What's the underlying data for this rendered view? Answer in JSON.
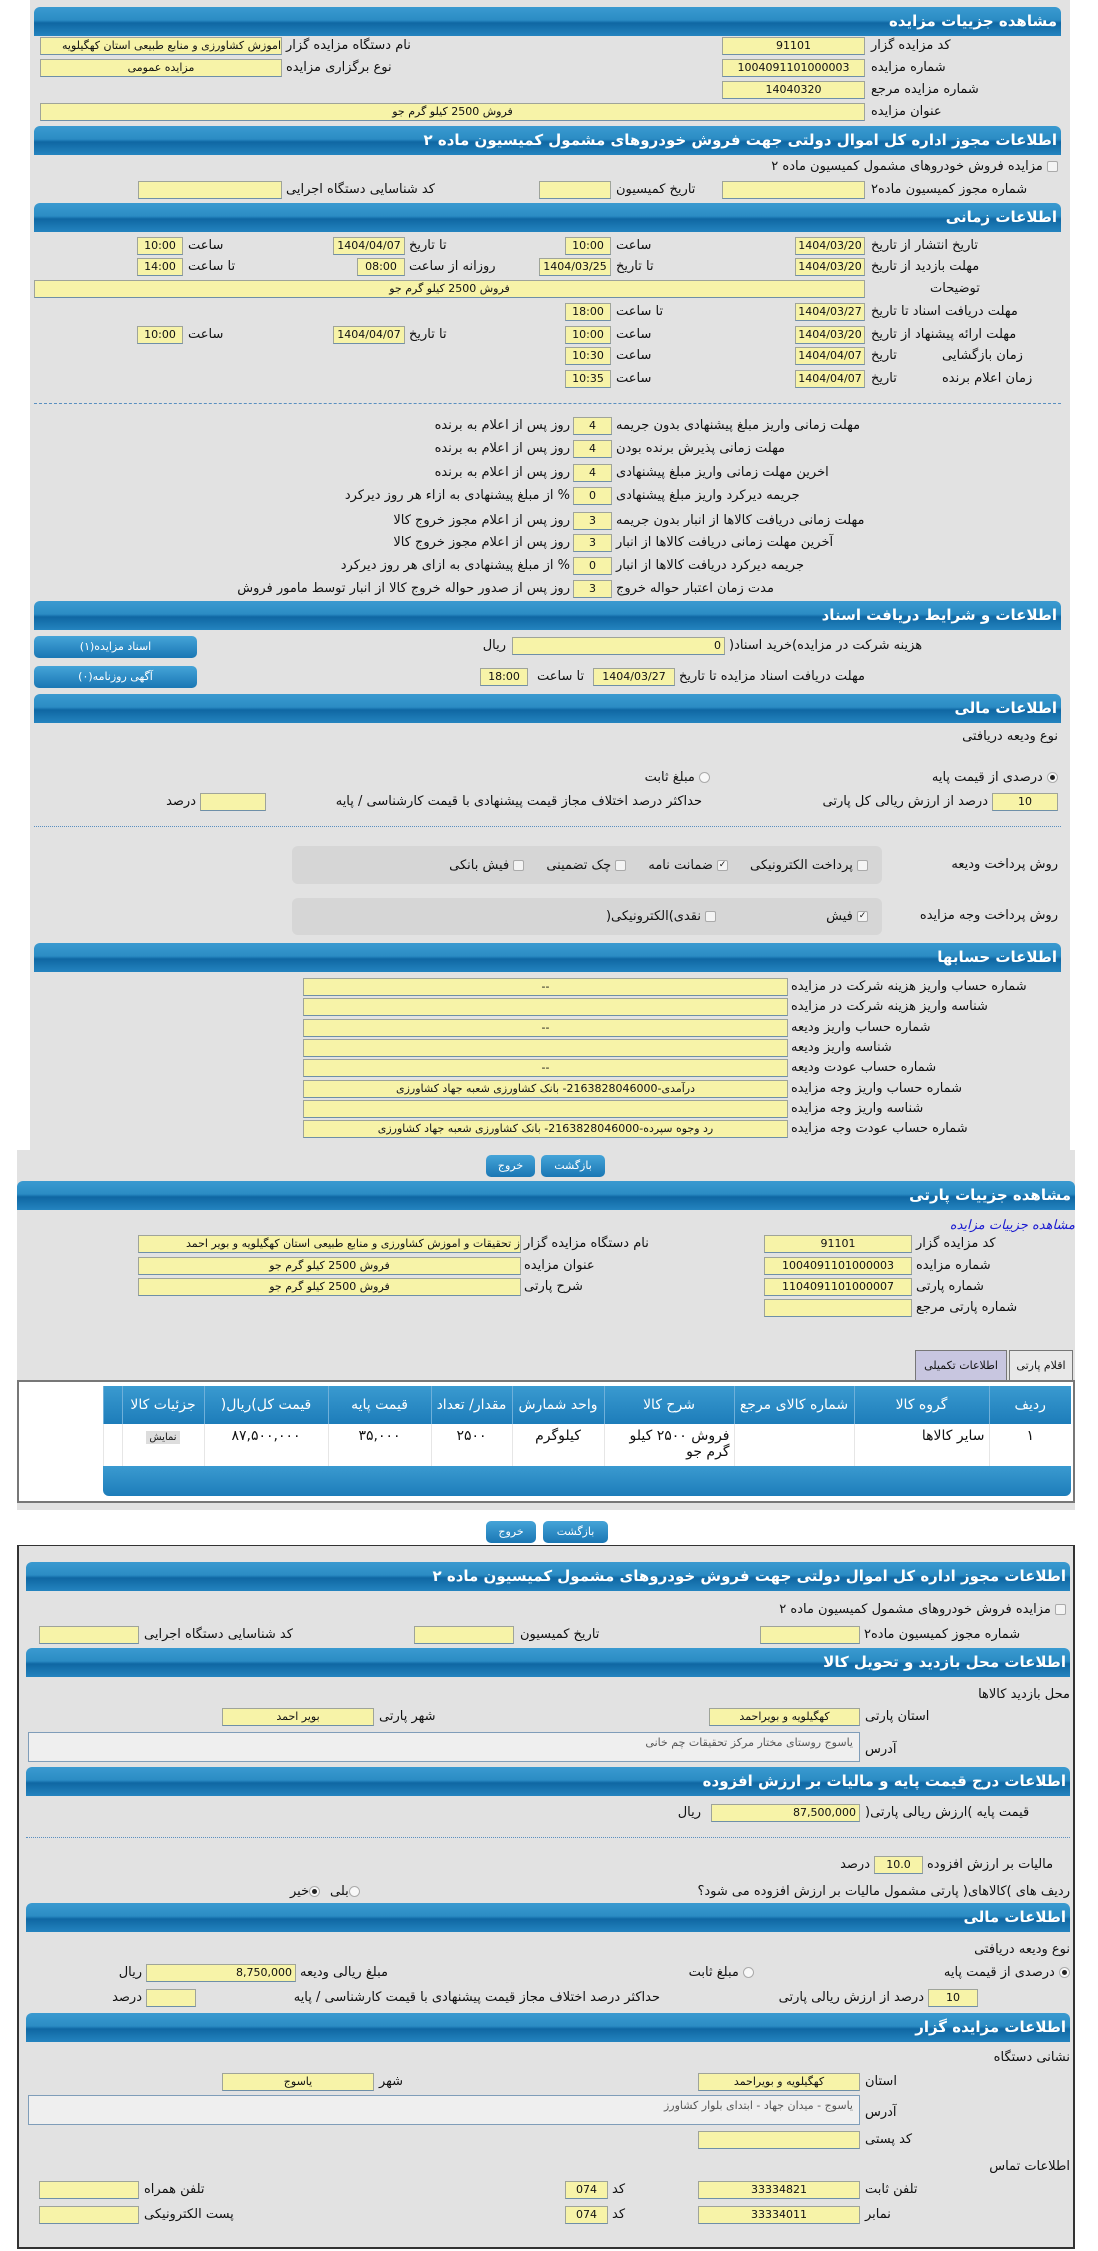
{
  "auction": {
    "header": "مشاهده جزییات مزایده",
    "code_label": "کد مزایده گزار",
    "code": "91101",
    "number_label": "شماره مزایده",
    "number": "1004091101000003",
    "ref_label": "شماره مزایده مرجع",
    "ref": "14040320",
    "title_label": "عنوان مزایده",
    "title": "فروش 2500 کیلو گرم جو",
    "org_label": "نام دستگاه مزایده گزار",
    "org": "اموزش کشاورزی و منابع طبیعی استان کهگیلویه",
    "type_label": "نوع برگزاری مزایده",
    "type": "مزایده عمومی"
  },
  "permit": {
    "header": "اطلاعات مجوز اداره کل اموال دولتی جهت فروش خودروهای مشمول کمیسیون ماده ۲",
    "checkbox_label": "مزایده فروش خودروهای مشمول کمیسیون ماده ۲",
    "permit_no_label": "شماره مجوز کمیسیون ماده۲",
    "commission_date_label": "تاریخ کمیسیون",
    "exec_id_label": "کد شناسایی دستگاه اجرایی",
    "permit_no": "",
    "commission_date": "",
    "exec_id": ""
  },
  "timing": {
    "header": "اطلاعات زمانی",
    "publish_label": "تاریخ انتشار  از تاریخ",
    "publish_from": "1404/03/20",
    "hour": "ساعت",
    "publish_from_time": "10:00",
    "to_date": "تا تاریخ",
    "publish_to": "1404/04/07",
    "publish_to_time": "10:00",
    "visit_label": "مهلت بازدید  از تاریخ",
    "visit_from": "1404/03/20",
    "visit_to": "1404/03/25",
    "daily_from": "روزانه از ساعت",
    "visit_daily_from": "08:00",
    "to_hour": "تا ساعت",
    "visit_daily_to": "14:00",
    "desc_label": "توضیحات",
    "desc": "فروش 2500 کیلو گرم جو",
    "docs_label": "مهلت دریافت اسناد  تا تاریخ",
    "docs_to": "1404/03/27",
    "docs_to_time": "18:00",
    "offer_label": "مهلت ارائه پیشنهاد  از تاریخ",
    "offer_from": "1404/03/20",
    "offer_from_time": "10:00",
    "offer_to": "1404/04/07",
    "offer_to_time": "10:00",
    "opening_label": "زمان بازگشایی",
    "date": "تاریخ",
    "opening_date": "1404/04/07",
    "opening_time": "10:30",
    "winner_label": "زمان اعلام برنده",
    "winner_date": "1404/04/07",
    "winner_time": "10:35"
  },
  "deadlines": [
    {
      "label": "مهلت زمانی واریز مبلغ پیشنهادی بدون جریمه",
      "value": "4",
      "suffix": "روز پس از اعلام به برنده"
    },
    {
      "label": "مهلت زمانی پذیرش برنده بودن",
      "value": "4",
      "suffix": "روز پس از اعلام به برنده"
    },
    {
      "label": "اخرین مهلت زمانی واریز مبلغ پیشنهادی",
      "value": "4",
      "suffix": "روز پس از اعلام به برنده"
    },
    {
      "label": "جریمه دیرکرد واریز مبلغ پیشنهادی",
      "value": "0",
      "suffix": "% از مبلغ پیشنهادی به ازاء هر روز دیرکرد"
    },
    {
      "label": "مهلت زمانی دریافت کالاها از انبار بدون جریمه",
      "value": "3",
      "suffix": "روز پس از اعلام مجوز خروج کالا"
    },
    {
      "label": "آخرین مهلت زمانی دریافت کالاها از انبار",
      "value": "3",
      "suffix": "روز پس از اعلام مجوز خروج کالا"
    },
    {
      "label": "جریمه دیرکرد دریافت کالاها از انبار",
      "value": "0",
      "suffix": "% از مبلغ پیشنهادی به ازای هر روز دیرکرد"
    },
    {
      "label": "مدت زمان اعتبار حواله خروج",
      "value": "3",
      "suffix": "روز پس از صدور حواله خروج کالا از انبار توسط مامور فروش"
    }
  ],
  "docs": {
    "header": "اطلاعات و شرایط دریافت اسناد",
    "fee_label": "هزینه شرکت در مزایده)خرید اسناد(",
    "fee": "0",
    "rial": "ریال",
    "deadline_label": "مهلت دریافت اسناد مزایده تا تاریخ",
    "deadline_date": "1404/03/27",
    "to_hour": "تا ساعت",
    "deadline_time": "18:00",
    "docs_button": "اسناد مزایده(۱)",
    "ads_button": "آگهی روزنامه(۰)"
  },
  "finance": {
    "header": "اطلاعات مالی",
    "deposit_type_label": "نوع ودیعه دریافتی",
    "percent_option": "درصدی از قیمت پایه",
    "fixed_option": "مبلغ ثابت",
    "selected": "percent",
    "percent_value": "10",
    "percent_suffix": "درصد از ارزش ریالی کل پارتی",
    "max_diff_label": "حداکثر درصد اختلاف مجاز قیمت پیشنهادی با قیمت کارشناسی / پایه",
    "max_diff": "",
    "percent": "درصد",
    "deposit_method_label": "روش پرداخت ودیعه",
    "deposit_methods": [
      {
        "label": "پرداخت الکترونیکی",
        "checked": false
      },
      {
        "label": "ضمانت نامه",
        "checked": true
      },
      {
        "label": "چک تضمینی",
        "checked": false
      },
      {
        "label": "فیش بانکی",
        "checked": false
      }
    ],
    "payment_method_label": "روش پرداخت وجه مزایده",
    "payment_methods": [
      {
        "label": "فیش",
        "checked": true
      },
      {
        "label": "نقدی)الکترونیکی(",
        "checked": false
      }
    ]
  },
  "accounts": {
    "header": "اطلاعات حسابها",
    "rows": [
      {
        "label": "شماره حساب واریز هزینه شرکت در مزایده",
        "value": "--"
      },
      {
        "label": "شناسه واریز هزینه شرکت در مزایده",
        "value": ""
      },
      {
        "label": "شماره حساب واریز ودیعه",
        "value": "--"
      },
      {
        "label": "شناسه واریز ودیعه",
        "value": ""
      },
      {
        "label": "شماره حساب عودت ودیعه",
        "value": "--"
      },
      {
        "label": "شماره حساب واریز وجه مزایده",
        "value": "درآمدی-2163828046000- بانک کشاورزی شعبه جهاد کشاورزی"
      },
      {
        "label": "شناسه واریز وجه مزایده",
        "value": ""
      },
      {
        "label": "شماره حساب عودت وجه مزایده",
        "value": "رد وجوه سپرده-2163828046000- بانک کشاورزی شعبه جهاد کشاورزی"
      }
    ]
  },
  "buttons": {
    "back": "بازگشت",
    "exit": "خروج"
  },
  "lot": {
    "header": "مشاهده جزییات پارتی",
    "link": "مشاهده جزییات مزایده",
    "code_label": "کد مزایده گزار",
    "code": "91101",
    "number_label": "شماره مزایده",
    "number": "1004091101000003",
    "lot_no_label": "شماره پارتی",
    "lot_no": "1104091101000007",
    "lot_ref_label": "شماره پارتی مرجع",
    "lot_ref": "",
    "org_label": "نام دستگاه مزایده گزار",
    "org": "ز تحقیقات و اموزش کشاورزی و منابع طبیعی استان کهگیلویه و بویر احمد",
    "title_label": "عنوان مزایده",
    "title": "فروش 2500 کیلو گرم جو",
    "desc_label": "شرح پارتی",
    "desc": "فروش 2500 کیلو گرم جو",
    "tabs": [
      "اقلام پارتی",
      "اطلاعات تکمیلی"
    ],
    "columns": [
      "ردیف",
      "گروه کالا",
      "شماره کالای مرجع",
      "شرح کالا",
      "واحد شمارش",
      "مقدار/ تعداد",
      "قیمت پایه",
      "قیمت کل)ریال(",
      "جزئیات کالا"
    ],
    "rows": [
      [
        "۱",
        "سایر کالاها",
        "",
        "فروش ۲۵۰۰ کیلو گرم جو",
        "کیلوگرم",
        "۲۵۰۰",
        "۳۵,۰۰۰",
        "۸۷,۵۰۰,۰۰۰",
        "نمایش"
      ]
    ]
  },
  "permit2": {
    "header": "اطلاعات مجوز اداره کل اموال دولتی جهت فروش خودروهای مشمول کمیسیون ماده ۲",
    "checkbox_label": "مزایده فروش خودروهای مشمول کمیسیون ماده ۲",
    "permit_no_label": "شماره مجوز کمیسیون ماده۲",
    "commission_date_label": "تاریخ کمیسیون",
    "exec_id_label": "کد شناسایی دستگاه اجرایی"
  },
  "visit": {
    "header": "اطلاعات محل بازدید و تحویل کالا",
    "place_label": "محل بازدید کالاها",
    "province_label": "استان پارتی",
    "province": "کهگیلویه و بویراحمد",
    "city_label": "شهر پارتی",
    "city": "بویر احمد",
    "address_label": "آدرس",
    "address": "یاسوج روستای مختار مرکز تحقیقات چم خانی"
  },
  "price": {
    "header": "اطلاعات درج قیمت پایه و مالیات بر ارزش افزوده",
    "base_label": "قیمت پایه )ارزش ریالی پارتی(",
    "base": "87,500,000",
    "rial": "ریال",
    "vat_label": "مالیات بر ارزش افزوده",
    "vat": "10.0",
    "percent": "درصد",
    "vat_question": "ردیف های )کالاهای( پارتی مشمول مالیات بر ارزش افزوده می شود؟",
    "yes": "بلی",
    "no": "خیر",
    "vat_selected": "no"
  },
  "finance2": {
    "header": "اطلاعات مالی",
    "deposit_type_label": "نوع ودیعه دریافتی",
    "percent_option": "درصدی از قیمت پایه",
    "fixed_option": "مبلغ ثابت",
    "deposit_amount_label": "مبلغ ریالی ودیعه",
    "deposit_amount": "8,750,000",
    "rial": "ریال",
    "percent_value": "10",
    "percent_suffix": "درصد از ارزش ریالی پارتی",
    "max_diff_label": "حداکثر درصد اختلاف مجاز قیمت پیشنهادی با قیمت کارشناسی / پایه",
    "percent": "درصد"
  },
  "seller": {
    "header": "اطلاعات مزایده گزار",
    "address_title": "نشانی دستگاه",
    "province_label": "استان",
    "province": "کهگیلویه و بویراحمد",
    "city_label": "شهر",
    "city": "یاسوج",
    "address_label": "آدرس",
    "address": "یاسوج - میدان جهاد - ابتدای بلوار کشاورز",
    "postal_label": "کد پستی",
    "postal": "",
    "contact_title": "اطلاعات تماس",
    "phone_label": "تلفن ثابت",
    "phone": "33334821",
    "code_label": "کد",
    "phone_code": "074",
    "mobile_label": "تلفن همراه",
    "mobile": "",
    "fax_label": "نمابر",
    "fax": "33334011",
    "fax_code": "074",
    "email_label": "پست الکترونیکی",
    "email": ""
  },
  "colors": {
    "header": "#1f80bd",
    "field": "#f7f3a8",
    "panel": "#e2e2e2",
    "tab_active": "#c8c6e0",
    "link": "#1a1ad0"
  }
}
